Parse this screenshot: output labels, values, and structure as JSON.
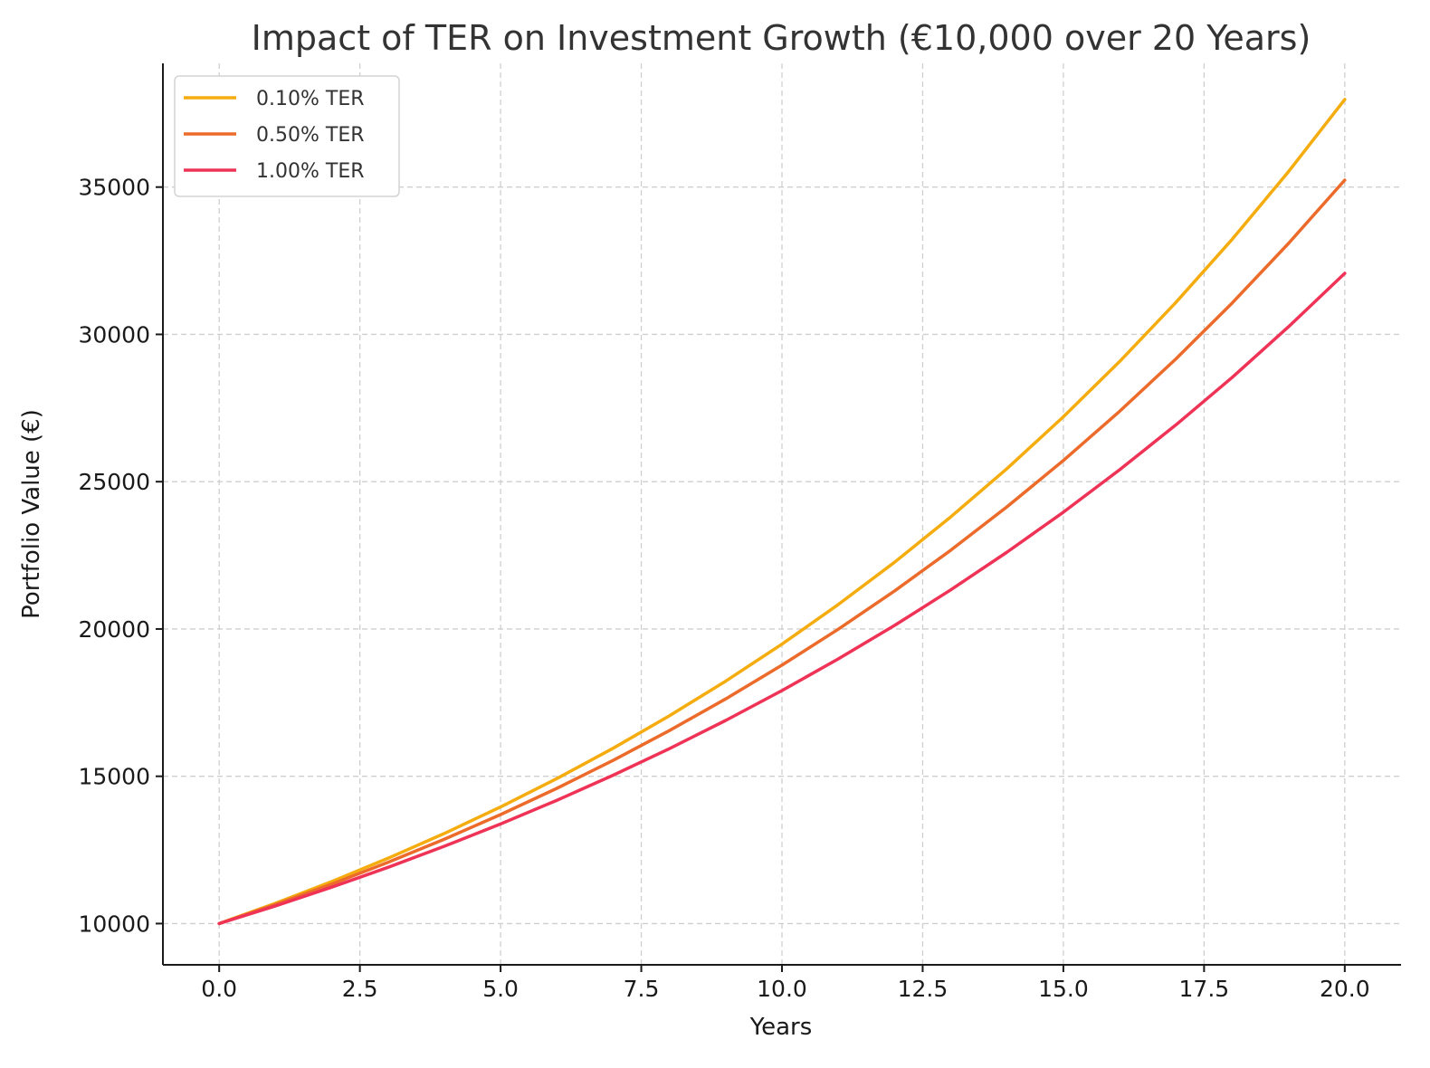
{
  "chart_data": {
    "type": "line",
    "title": "Impact of TER on Investment Growth (€10,000 over 20 Years)",
    "xlabel": "Years",
    "ylabel": "Portfolio Value (€)",
    "xlim": [
      -1,
      21
    ],
    "ylim": [
      8600,
      39200
    ],
    "xticks": [
      0.0,
      2.5,
      5.0,
      7.5,
      10.0,
      12.5,
      15.0,
      17.5,
      20.0
    ],
    "xtick_labels": [
      "0.0",
      "2.5",
      "5.0",
      "7.5",
      "10.0",
      "12.5",
      "15.0",
      "17.5",
      "20.0"
    ],
    "yticks": [
      10000,
      15000,
      20000,
      25000,
      30000,
      35000
    ],
    "ytick_labels": [
      "10000",
      "15000",
      "20000",
      "25000",
      "30000",
      "35000"
    ],
    "grid": true,
    "legend_position": "top-left",
    "x": [
      0,
      1,
      2,
      3,
      4,
      5,
      6,
      7,
      8,
      9,
      10,
      11,
      12,
      13,
      14,
      15,
      16,
      17,
      18,
      19,
      20
    ],
    "series": [
      {
        "name": "0.10% TER",
        "color": "#f5ac0e",
        "values": [
          10000,
          10690,
          11427,
          12215,
          13058,
          13959,
          14922,
          15951,
          17052,
          18228,
          19486,
          20830,
          22267,
          23804,
          25446,
          27202,
          29079,
          31085,
          33230,
          35523,
          37974
        ]
      },
      {
        "name": "0.50% TER",
        "color": "#ec6b2a",
        "values": [
          10000,
          10650,
          11342,
          12079,
          12865,
          13701,
          14591,
          15540,
          16550,
          17626,
          18771,
          19992,
          21291,
          22675,
          24149,
          25718,
          27390,
          29170,
          31067,
          33086,
          35236
        ]
      },
      {
        "name": "1.00% TER",
        "color": "#ef3357",
        "values": [
          10000,
          10600,
          11236,
          11910,
          12625,
          13382,
          14185,
          15036,
          15938,
          16895,
          17908,
          18983,
          20122,
          21329,
          22609,
          23966,
          25404,
          26928,
          28543,
          30256,
          32071
        ]
      }
    ]
  }
}
